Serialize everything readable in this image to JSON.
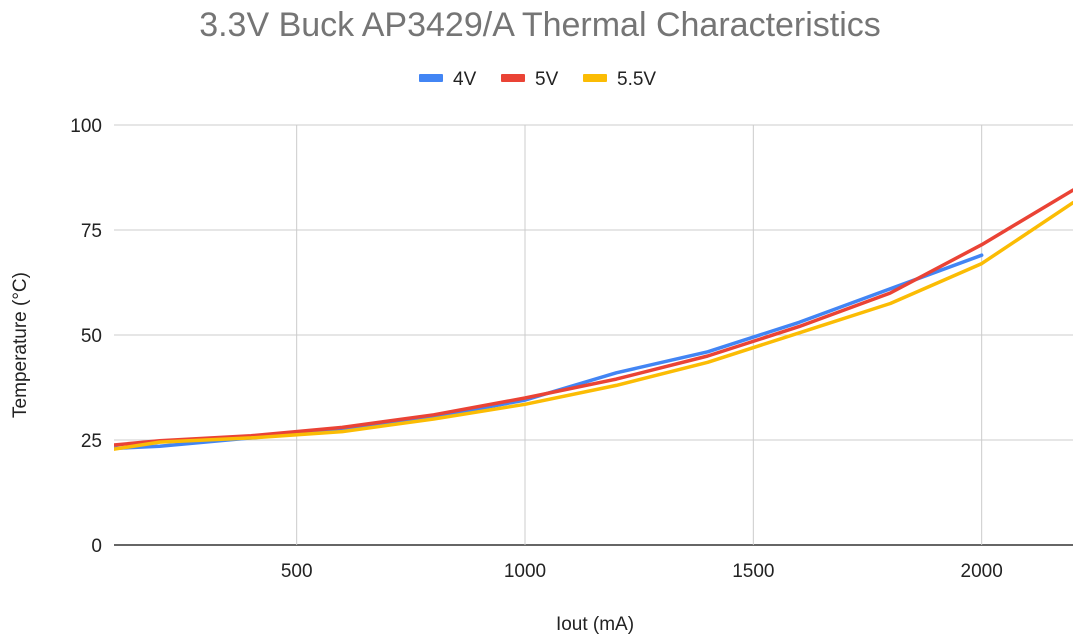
{
  "chart_data": {
    "type": "line",
    "title": "3.3V Buck AP3429/A Thermal Characteristics",
    "xlabel": "Iout (mA)",
    "ylabel": "Temperature (°C)",
    "xlim": [
      100,
      2200
    ],
    "ylim": [
      0,
      100
    ],
    "x_ticks": [
      500,
      1000,
      1500,
      2000
    ],
    "y_ticks": [
      0,
      25,
      50,
      75,
      100
    ],
    "grid": true,
    "legend_position": "top",
    "series": [
      {
        "name": "4V",
        "color": "#4285f4",
        "points": [
          [
            100,
            23.0
          ],
          [
            200,
            23.5
          ],
          [
            400,
            25.5
          ],
          [
            600,
            27.5
          ],
          [
            800,
            30.5
          ],
          [
            1000,
            34.5
          ],
          [
            1200,
            41.0
          ],
          [
            1400,
            46.0
          ],
          [
            1600,
            53.0
          ],
          [
            1800,
            61.0
          ],
          [
            2000,
            69.0
          ]
        ]
      },
      {
        "name": "5V",
        "color": "#ea4335",
        "points": [
          [
            100,
            23.8
          ],
          [
            200,
            24.8
          ],
          [
            400,
            26.0
          ],
          [
            600,
            28.0
          ],
          [
            800,
            31.0
          ],
          [
            1000,
            35.0
          ],
          [
            1200,
            39.5
          ],
          [
            1400,
            45.0
          ],
          [
            1600,
            52.0
          ],
          [
            1800,
            60.0
          ],
          [
            2000,
            71.5
          ],
          [
            2200,
            84.5
          ]
        ]
      },
      {
        "name": "5.5V",
        "color": "#fbbc04",
        "points": [
          [
            100,
            22.8
          ],
          [
            200,
            24.5
          ],
          [
            400,
            25.5
          ],
          [
            600,
            27.0
          ],
          [
            800,
            30.0
          ],
          [
            1000,
            33.5
          ],
          [
            1200,
            38.0
          ],
          [
            1400,
            43.5
          ],
          [
            1600,
            50.5
          ],
          [
            1800,
            57.5
          ],
          [
            2000,
            67.0
          ],
          [
            2200,
            81.5
          ]
        ]
      }
    ]
  }
}
